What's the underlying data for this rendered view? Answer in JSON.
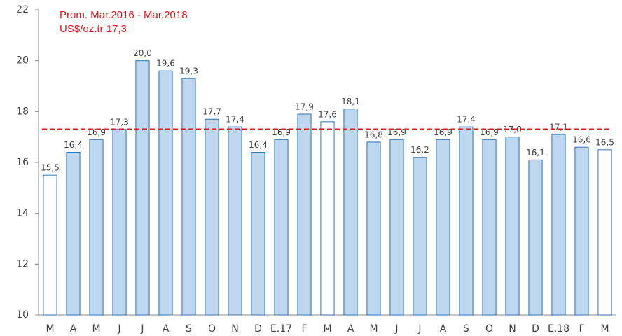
{
  "chart_data": {
    "type": "bar",
    "annotations": [
      "Prom. Mar.2016 - Mar.2018",
      "US$/oz.tr 17,3"
    ],
    "categories": [
      "M",
      "A",
      "M",
      "J",
      "J",
      "A",
      "S",
      "O",
      "N",
      "D",
      "E.17",
      "F",
      "M",
      "A",
      "M",
      "J",
      "J",
      "A",
      "S",
      "O",
      "N",
      "D",
      "E.18",
      "F",
      "M"
    ],
    "values": [
      15.5,
      16.4,
      16.9,
      17.3,
      20.0,
      19.6,
      19.3,
      17.7,
      17.4,
      16.4,
      16.9,
      17.9,
      17.6,
      18.1,
      16.8,
      16.9,
      16.2,
      16.9,
      17.4,
      16.9,
      17.0,
      16.1,
      17.1,
      16.6,
      16.5
    ],
    "value_labels": [
      "15,5",
      "16,4",
      "16,9",
      "17,3",
      "20,0",
      "19,6",
      "19,3",
      "17,7",
      "17,4",
      "16,4",
      "16,9",
      "17,9",
      "17,6",
      "18,1",
      "16,8",
      "16,9",
      "16,2",
      "16,9",
      "17,4",
      "16,9",
      "17,0",
      "16,1",
      "17,1",
      "16,6",
      "16,5"
    ],
    "colors": [
      "#ffffff",
      "#bdd7ee",
      "#bdd7ee",
      "#bdd7ee",
      "#bdd7ee",
      "#bdd7ee",
      "#bdd7ee",
      "#bdd7ee",
      "#bdd7ee",
      "#bdd7ee",
      "#bdd7ee",
      "#bdd7ee",
      "#ffffff",
      "#bdd7ee",
      "#bdd7ee",
      "#bdd7ee",
      "#bdd7ee",
      "#bdd7ee",
      "#bdd7ee",
      "#bdd7ee",
      "#bdd7ee",
      "#bdd7ee",
      "#bdd7ee",
      "#bdd7ee",
      "#ffffff"
    ],
    "edge_color": "#2e75b6",
    "reference_line": {
      "value": 17.3,
      "color": "#e8141b"
    },
    "ylim": [
      10,
      22
    ],
    "yticks": [
      10,
      12,
      14,
      16,
      18,
      20,
      22
    ],
    "grid": false
  }
}
